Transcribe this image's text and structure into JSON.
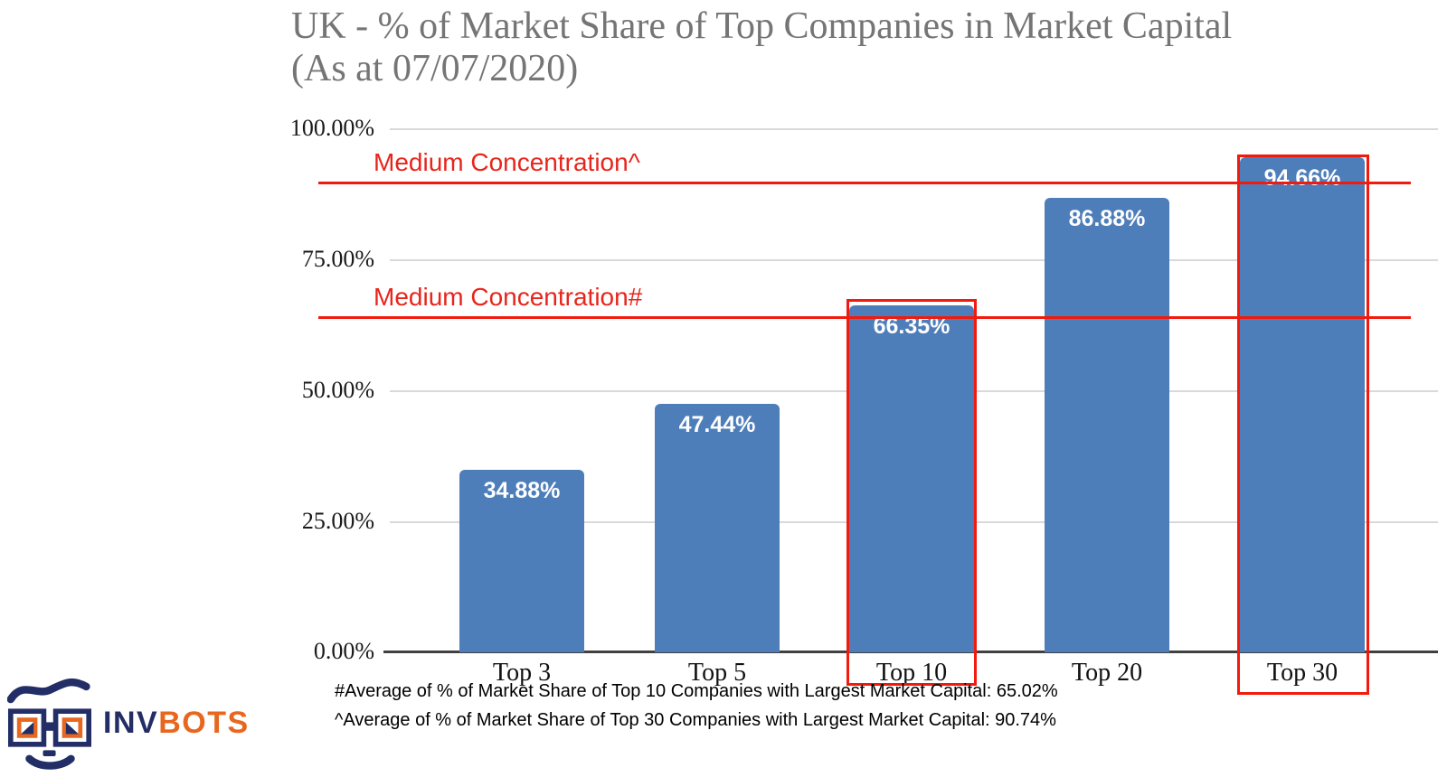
{
  "title": {
    "line1": "UK - % of Market Share of Top Companies in Market Capital",
    "line2": "(As at 07/07/2020)"
  },
  "chart_data": {
    "type": "bar",
    "title": "UK - % of Market Share of Top Companies in Market Capital (As at 07/07/2020)",
    "categories": [
      "Top 3",
      "Top 5",
      "Top 10",
      "Top 20",
      "Top 30"
    ],
    "values": [
      34.88,
      47.44,
      66.35,
      86.88,
      94.66
    ],
    "value_labels": [
      "34.88%",
      "47.44%",
      "66.35%",
      "86.88%",
      "94.66%"
    ],
    "xlabel": "",
    "ylabel": "",
    "ylim": [
      0,
      100
    ],
    "y_ticks": [
      "100.00%",
      "75.00%",
      "50.00%",
      "25.00%",
      "0.00%"
    ],
    "grid": "horizontal",
    "legend": "none",
    "bar_color": "#4e7eba",
    "annotations": {
      "upper_line": {
        "label": "Medium Concentration^",
        "value": 90.74
      },
      "lower_line": {
        "label": "Medium Concentration#",
        "value": 65.02
      },
      "highlighted_categories": [
        "Top 10",
        "Top 30"
      ]
    }
  },
  "footnotes": {
    "line1": "#Average of % of Market Share of Top 10 Companies with Largest Market Capital: 65.02%",
    "line2": "^Average of % of Market Share of Top 30 Companies with Largest Market Capital: 90.74%"
  },
  "logo": {
    "text_primary": "INV",
    "text_secondary": "BOTS"
  },
  "colors": {
    "bar_blue": "#4e7eba",
    "annotation_red": "#f31a0d",
    "title_gray": "#757575",
    "logo_navy": "#232e66",
    "logo_orange": "#e8671f"
  },
  "icons": {
    "robot_face": "robot-face-icon"
  }
}
